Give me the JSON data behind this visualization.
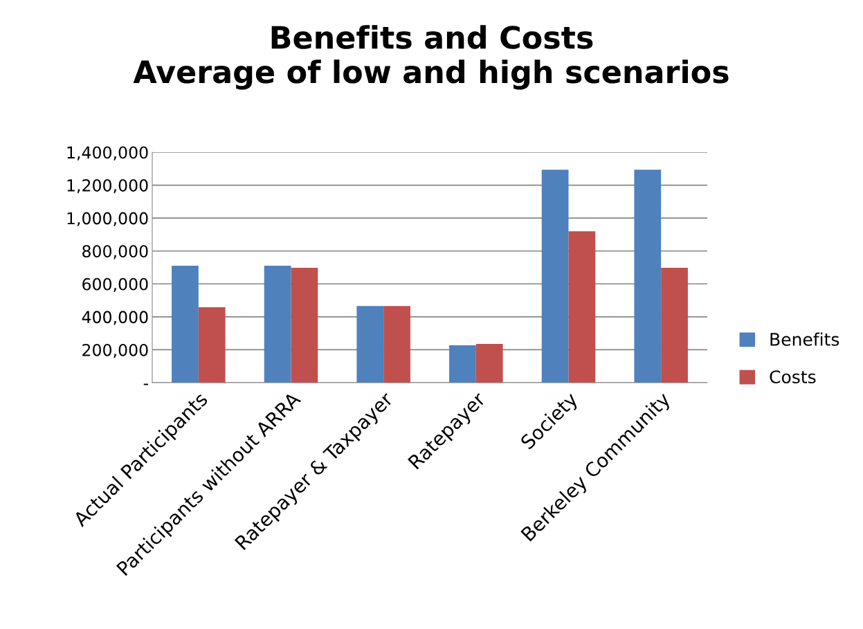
{
  "chart_data": {
    "type": "bar",
    "title": "Benefits and Costs\nAverage of low and high scenarios",
    "categories": [
      "Actual Participants",
      "Participants without ARRA",
      "Ratepayer & Taxpayer",
      "Ratepayer",
      "Society",
      "Berkeley Community"
    ],
    "series": [
      {
        "name": "Benefits",
        "color": "#4f81bd",
        "values": [
          710000,
          710000,
          466000,
          227000,
          1294000,
          1294000
        ]
      },
      {
        "name": "Costs",
        "color": "#c0504d",
        "values": [
          458000,
          698000,
          466000,
          235000,
          920000,
          698000
        ]
      }
    ],
    "ylim": [
      0,
      1400000
    ],
    "yticks": [
      {
        "value": 0,
        "label": "-"
      },
      {
        "value": 200000,
        "label": "200,000"
      },
      {
        "value": 400000,
        "label": "400,000"
      },
      {
        "value": 600000,
        "label": "600,000"
      },
      {
        "value": 800000,
        "label": "800,000"
      },
      {
        "value": 1000000,
        "label": "1,000,000"
      },
      {
        "value": 1200000,
        "label": "1,200,000"
      },
      {
        "value": 1400000,
        "label": "1,400,000"
      }
    ],
    "grid": "y",
    "legend": "right"
  }
}
